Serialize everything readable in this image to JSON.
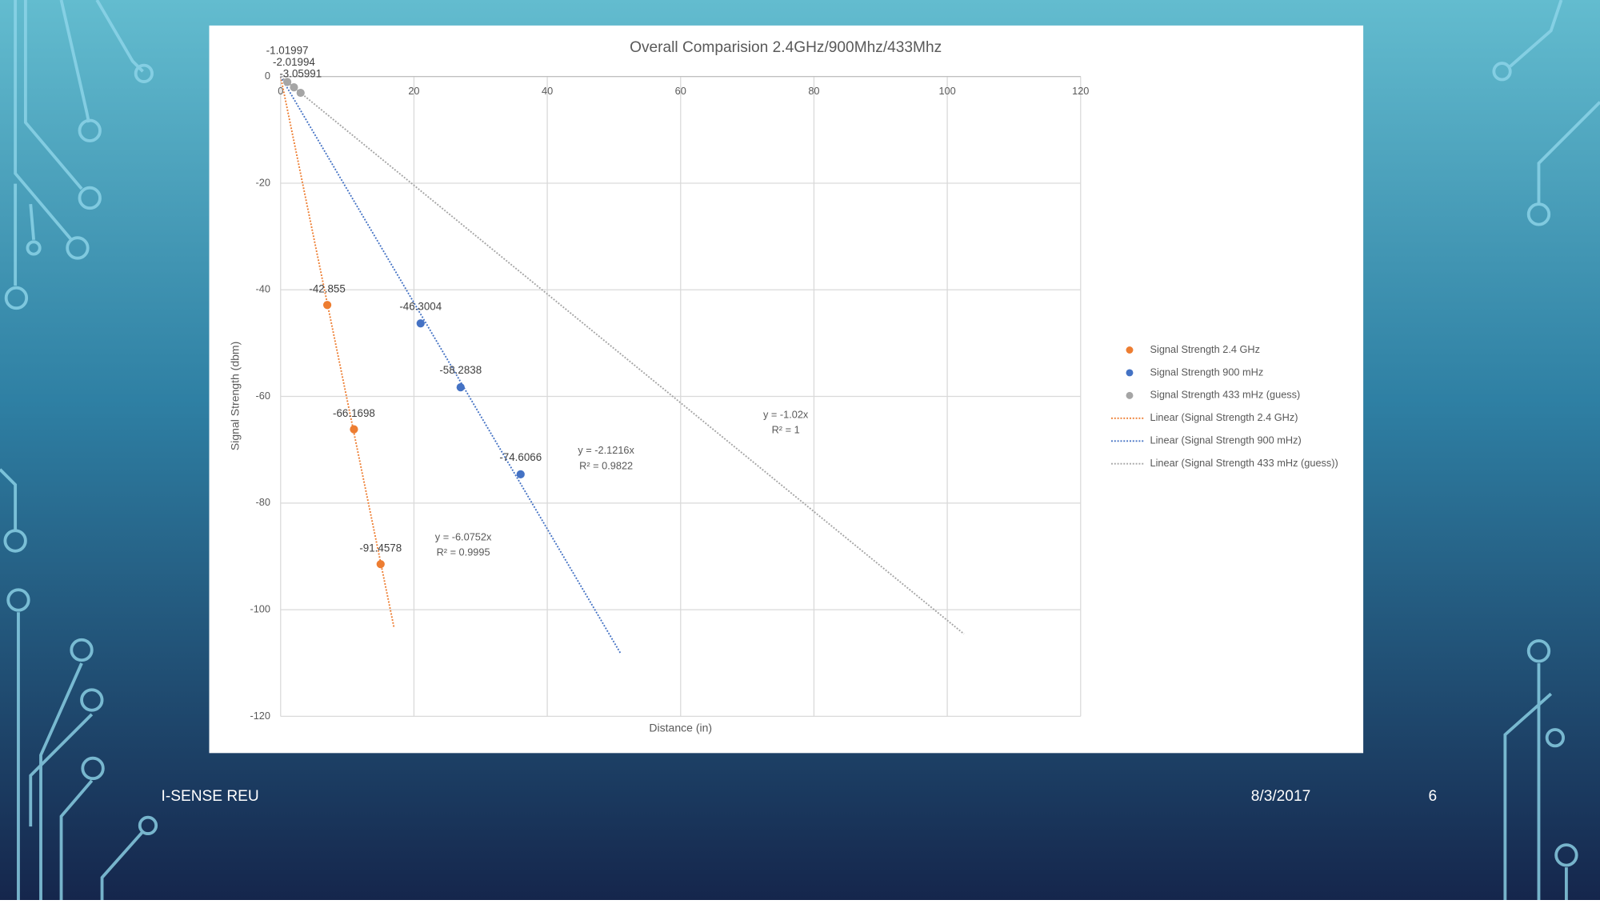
{
  "chart_data": {
    "type": "scatter",
    "title": "Overall Comparision 2.4GHz/900Mhz/433Mhz",
    "x_label": "Distance (in)",
    "y_label": "Signal Strength (dbm)",
    "xlim": [
      0,
      120
    ],
    "xticks": [
      0,
      20,
      40,
      60,
      80,
      100,
      120
    ],
    "ylim": [
      -120,
      0
    ],
    "yticks": [
      0,
      -20,
      -40,
      -60,
      -80,
      -100,
      -120
    ],
    "grid": true,
    "series": [
      {
        "name": "Signal Strength 2.4 GHz",
        "color": "#ed7d31",
        "x": [
          7,
          11,
          15
        ],
        "values": [
          -42.855,
          -66.1698,
          -91.4578
        ],
        "trendline": {
          "name": "Linear (Signal Strength 2.4 GHz)",
          "slope": -6.0752,
          "x_end": 17,
          "equation": "y = -6.0752x",
          "r_squared": "R² = 0.9995"
        }
      },
      {
        "name": "Signal Strength 900 mHz",
        "color": "#4472c4",
        "x": [
          21,
          27,
          36
        ],
        "values": [
          -46.3004,
          -58.2838,
          -74.6066
        ],
        "trendline": {
          "name": "Linear (Signal Strength 900 mHz)",
          "slope": -2.1216,
          "x_end": 51,
          "equation": "y = -2.1216x",
          "r_squared": "R² = 0.9822"
        }
      },
      {
        "name": "Signal Strength 433 mHz (guess)",
        "color": "#a5a5a5",
        "x": [
          1,
          2,
          3
        ],
        "values": [
          -1.01997,
          -2.01994,
          -3.05991
        ],
        "trendline": {
          "name": "Linear (Signal Strength 433 mHz (guess))",
          "slope": -1.02,
          "x_end": 102.5,
          "equation": "y = -1.02x",
          "r_squared": "R² = 1"
        }
      }
    ]
  },
  "footer": {
    "left": "I-SENSE REU",
    "date": "8/3/2017",
    "page": "6"
  }
}
